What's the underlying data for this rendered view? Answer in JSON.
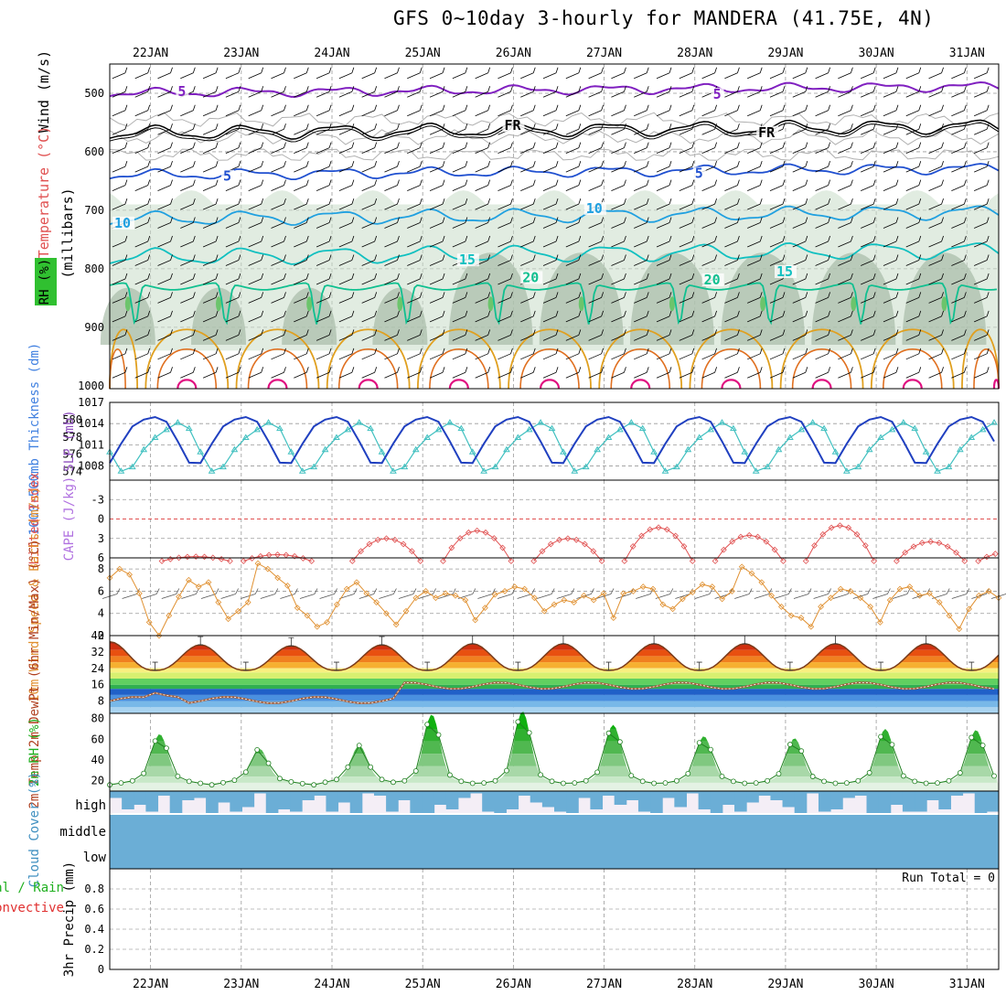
{
  "title": "GFS 0~10day 3-hourly for MANDERA (41.75E, 4N)",
  "colors": {
    "temp_contour_cold": "#8020c0",
    "temp_contour_5": "#2050d0",
    "temp_contour_10": "#20a0e0",
    "temp_contour_15": "#10c0c0",
    "temp_contour_20": "#10c090",
    "temp_contour_25": "#e0a020",
    "temp_contour_30": "#e07020",
    "temp_contour_35": "#e01080",
    "rh_shade": "#c8dcc8",
    "slp": "#40c0c0",
    "thickness": "#2040c0",
    "lifted_index": "#e05050",
    "wind_speed": "#e09030",
    "dewpoint": "#a06040",
    "rh2m": "#20c020",
    "cloud": "#6baed6",
    "cloud_bg": "#f4eef6"
  },
  "chart_data": [
    {
      "type": "area",
      "panel": "upper_air",
      "ylabel_parts": [
        "RH (%)",
        "Temperature (°C)",
        "Wind (m/s)"
      ],
      "ylabel": "(millibars)",
      "y_ticks": [
        "500",
        "600",
        "700",
        "800",
        "900",
        "1000"
      ],
      "contour_labels": [
        {
          "text": "5",
          "level": 500,
          "day": 22.3
        },
        {
          "text": "5",
          "level": 505,
          "day": 28.2
        },
        {
          "text": "FR",
          "level": 558,
          "day": 25.9
        },
        {
          "text": "FR",
          "level": 570,
          "day": 28.7
        },
        {
          "text": "5",
          "level": 645,
          "day": 22.8
        },
        {
          "text": "5",
          "level": 640,
          "day": 28.0
        },
        {
          "text": "10",
          "level": 725,
          "day": 21.6
        },
        {
          "text": "10",
          "level": 700,
          "day": 26.8
        },
        {
          "text": "15",
          "level": 788,
          "day": 25.4
        },
        {
          "text": "15",
          "level": 808,
          "day": 28.9
        },
        {
          "text": "20",
          "level": 818,
          "day": 26.1
        },
        {
          "text": "20",
          "level": 822,
          "day": 28.1
        }
      ],
      "isotherm_levels_mb": [
        {
          "name": "-5",
          "base": 500
        },
        {
          "name": "FR",
          "base": 568
        },
        {
          "name": "5",
          "base": 640
        },
        {
          "name": "10",
          "base": 715
        },
        {
          "name": "15",
          "base": 780
        },
        {
          "name": "20",
          "base": 835
        }
      ]
    },
    {
      "type": "line",
      "panel": "slp_thickness",
      "ylabel_left": "1000-500mb Thickness (dm)",
      "ylabel_right": "SLP (mb)",
      "y_ticks_left": [
        "580",
        "578",
        "576",
        "574"
      ],
      "y_ticks_right": [
        "1017",
        "1014",
        "1011",
        "1008"
      ],
      "slp_range": [
        1006,
        1017
      ],
      "slp_series": "diurnal, peaks ~1014-1015 near 06Z, troughs ~1007-1008 near 15Z",
      "thickness_range": [
        573,
        582
      ],
      "thickness_series": "diurnal, peaks ~581 near 12Z, troughs ~575 near 00Z"
    },
    {
      "type": "line",
      "panel": "stability",
      "ylabel_left": "Lifted Index",
      "ylabel_right": "CAPE (J/kg)",
      "y_ticks": [
        "-3",
        "0",
        "3",
        "6"
      ],
      "ylim": [
        -6,
        6
      ],
      "lifted_index_peaks": [
        {
          "day": 21.0,
          "value": 5.5
        },
        {
          "day": 22.5,
          "value": 5.8
        },
        {
          "day": 23.4,
          "value": 5.5
        },
        {
          "day": 24.6,
          "value": 3.0
        },
        {
          "day": 25.6,
          "value": 1.8
        },
        {
          "day": 26.6,
          "value": 3.0
        },
        {
          "day": 27.6,
          "value": 1.3
        },
        {
          "day": 28.6,
          "value": 2.5
        },
        {
          "day": 29.6,
          "value": 1.0
        },
        {
          "day": 30.6,
          "value": 3.5
        },
        {
          "day": 31.5,
          "value": 5.0
        }
      ]
    },
    {
      "type": "line",
      "panel": "wind10m",
      "ylabel": "10m Wind Speed & Barbs (m/s)",
      "y_ticks": [
        "8",
        "6",
        "4",
        "2"
      ],
      "ylim": [
        2,
        9
      ],
      "values": [
        7.2,
        8.0,
        7.5,
        5.8,
        3.2,
        2.0,
        3.8,
        5.5,
        7.0,
        6.4,
        6.8,
        5.0,
        3.5,
        4.2,
        5.0,
        8.5,
        8.0,
        7.2,
        6.5,
        4.5,
        3.8,
        2.8,
        3.2,
        4.8,
        6.2,
        6.8,
        5.8,
        5.0,
        4.0,
        3.0,
        4.2,
        5.4,
        6.0,
        5.4,
        5.8,
        5.6,
        5.2,
        3.4,
        4.5,
        5.7,
        6.0,
        6.4,
        6.2,
        5.4,
        4.2,
        4.8,
        5.2,
        5.0,
        5.6,
        5.2,
        5.8,
        3.6,
        5.8,
        6.0,
        6.4,
        6.2,
        4.8,
        4.4,
        5.3,
        5.9,
        6.6,
        6.4,
        5.3,
        6.0,
        8.2,
        7.6,
        6.8,
        5.6,
        4.6,
        3.8,
        3.6,
        2.8,
        4.6,
        5.4,
        6.2,
        6.0,
        5.4,
        4.6,
        3.2,
        5.2,
        6.2,
        6.4,
        5.6,
        5.8,
        5.0,
        3.8,
        2.6,
        4.4,
        5.6,
        6.0,
        5.4
      ]
    },
    {
      "type": "area",
      "panel": "temp2m",
      "ylabel": "2m Temp 2m DewPt (6hr Min/Max) (°C)",
      "y_ticks": [
        "40",
        "32",
        "24",
        "16",
        "8"
      ],
      "ylim": [
        2,
        40
      ],
      "temp_max_daily": [
        37,
        35.5,
        35,
        35.5,
        36,
        36,
        36,
        36,
        36,
        36
      ],
      "temp_min_daily": [
        23,
        23,
        23,
        23,
        23,
        23,
        23,
        23,
        23,
        23
      ],
      "dewpoint_series": "around 7-10°C days 21-24, rising to 15-18°C days 25-31 with diurnal swings"
    },
    {
      "type": "area",
      "panel": "rh2m",
      "ylabel": "2m RH (%)",
      "y_ticks": [
        "80",
        "60",
        "40",
        "20"
      ],
      "ylim": [
        10,
        85
      ],
      "daily_peaks": [
        {
          "day": 22.1,
          "value": 57
        },
        {
          "day": 23.2,
          "value": 43
        },
        {
          "day": 24.3,
          "value": 46
        },
        {
          "day": 25.1,
          "value": 76
        },
        {
          "day": 26.1,
          "value": 79
        },
        {
          "day": 27.1,
          "value": 66
        },
        {
          "day": 28.1,
          "value": 55
        },
        {
          "day": 29.1,
          "value": 53
        },
        {
          "day": 30.1,
          "value": 62
        },
        {
          "day": 31.1,
          "value": 61
        }
      ],
      "daily_minimum": 16
    },
    {
      "type": "bar",
      "panel": "cloud",
      "ylabel": "Cloud Cover (%)",
      "layers": [
        "high",
        "middle",
        "low"
      ],
      "low_cover": "100% throughout",
      "middle_cover": "100% throughout",
      "high_cover": "variable, mostly heavy"
    },
    {
      "type": "bar",
      "panel": "precip",
      "ylabel_parts": [
        "Total / Rain",
        "Convective",
        "3hr Precip (mm)"
      ],
      "y_ticks": [
        "0.8",
        "0.6",
        "0.4",
        "0.2",
        "0"
      ],
      "ylim": [
        0,
        1
      ],
      "values": [],
      "annotation": "Run Total = 0"
    }
  ],
  "x_axis": {
    "days": [
      "22JAN",
      "23JAN",
      "24JAN",
      "25JAN",
      "26JAN",
      "27JAN",
      "28JAN",
      "29JAN",
      "30JAN",
      "31JAN"
    ]
  }
}
